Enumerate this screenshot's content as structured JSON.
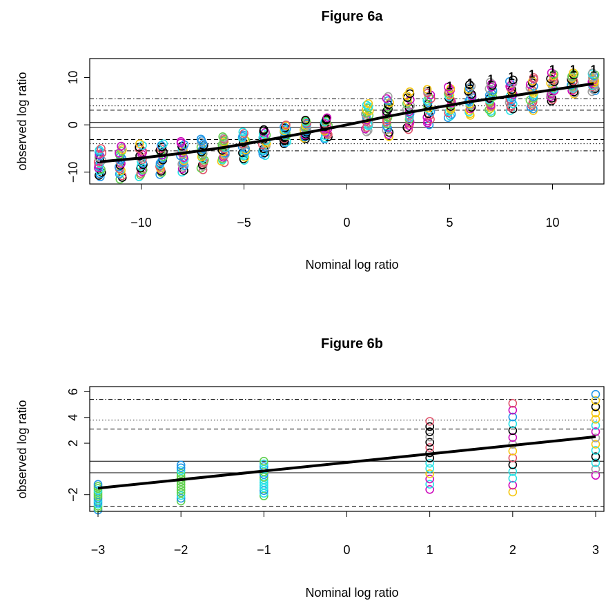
{
  "chart_data": [
    {
      "type": "scatter",
      "title": "Figure 6a",
      "xlabel": "Nominal log ratio",
      "ylabel": "observed log ratio",
      "xlim": [
        -12.5,
        12.5
      ],
      "ylim": [
        -12.5,
        14
      ],
      "xticks": [
        -10,
        -5,
        0,
        5,
        10
      ],
      "xtick_labels": [
        "−10",
        "−5",
        "0",
        "5",
        "10"
      ],
      "yticks": [
        -10,
        0,
        10
      ],
      "ytick_labels": [
        "−10",
        "0",
        "10"
      ],
      "grid": false,
      "colors": [
        "#000000",
        "#df536b",
        "#61d04f",
        "#2297e6",
        "#28e2e5",
        "#cd0bbc",
        "#f5c710",
        "#9e9e9e"
      ],
      "x_levels": [
        -12,
        -11,
        -10,
        -9,
        -8,
        -7,
        -6,
        -5,
        -4,
        -3,
        -2,
        -1,
        1,
        2,
        3,
        4,
        5,
        6,
        7,
        8,
        9,
        10,
        11,
        12
      ],
      "point_ranges": [
        {
          "x": -12,
          "ymin": -11,
          "ymax": -5
        },
        {
          "x": -11,
          "ymin": -11.5,
          "ymax": -4.5
        },
        {
          "x": -10,
          "ymin": -11,
          "ymax": -4
        },
        {
          "x": -9,
          "ymin": -10.5,
          "ymax": -4
        },
        {
          "x": -8,
          "ymin": -10,
          "ymax": -3.5
        },
        {
          "x": -7,
          "ymin": -9.5,
          "ymax": -3
        },
        {
          "x": -6,
          "ymin": -8,
          "ymax": -2.5
        },
        {
          "x": -5,
          "ymin": -7.5,
          "ymax": -1.5
        },
        {
          "x": -4,
          "ymin": -6.5,
          "ymax": -1
        },
        {
          "x": -3,
          "ymin": -4,
          "ymax": 0
        },
        {
          "x": -2,
          "ymin": -3,
          "ymax": 1
        },
        {
          "x": -1,
          "ymin": -3,
          "ymax": 1.5
        },
        {
          "x": 1,
          "ymin": -1.5,
          "ymax": 4.5
        },
        {
          "x": 2,
          "ymin": -2.5,
          "ymax": 6
        },
        {
          "x": 3,
          "ymin": -1,
          "ymax": 7
        },
        {
          "x": 4,
          "ymin": 0,
          "ymax": 7.5
        },
        {
          "x": 5,
          "ymin": 1.5,
          "ymax": 8
        },
        {
          "x": 6,
          "ymin": 2,
          "ymax": 8.5
        },
        {
          "x": 7,
          "ymin": 2.5,
          "ymax": 9
        },
        {
          "x": 8,
          "ymin": 3,
          "ymax": 9.5
        },
        {
          "x": 9,
          "ymin": 3,
          "ymax": 10
        },
        {
          "x": 10,
          "ymin": 5,
          "ymax": 11
        },
        {
          "x": 11,
          "ymin": 6.5,
          "ymax": 11
        },
        {
          "x": 12,
          "ymin": 7,
          "ymax": 11
        }
      ],
      "one_labels": [
        {
          "x": 4,
          "y": 6.5
        },
        {
          "x": 5,
          "y": 7.5
        },
        {
          "x": 6,
          "y": 8.2
        },
        {
          "x": 7,
          "y": 9
        },
        {
          "x": 8,
          "y": 9.5
        },
        {
          "x": 9,
          "y": 10
        },
        {
          "x": 10,
          "y": 11
        },
        {
          "x": 11,
          "y": 11
        },
        {
          "x": 12,
          "y": 11
        }
      ],
      "fit_line": {
        "x": [
          -12,
          -10,
          -8,
          -6,
          -4,
          -2,
          0,
          2,
          4,
          6,
          8,
          10,
          12
        ],
        "y": [
          -7.8,
          -7,
          -6,
          -4.8,
          -3.3,
          -1.7,
          0,
          1.8,
          3.4,
          4.9,
          6.1,
          7.4,
          8.7
        ]
      },
      "hlines": [
        {
          "y": 5.5,
          "style": "dashdot"
        },
        {
          "y": 4,
          "style": "dotted"
        },
        {
          "y": 3.1,
          "style": "dashed"
        },
        {
          "y": 0.5,
          "style": "solid"
        },
        {
          "y": -0.5,
          "style": "solid"
        },
        {
          "y": -3.1,
          "style": "dashed"
        },
        {
          "y": -4,
          "style": "dotted"
        },
        {
          "y": -5.5,
          "style": "dashdot"
        }
      ]
    },
    {
      "type": "scatter",
      "title": "Figure 6b",
      "xlabel": "Nominal log ratio",
      "ylabel": "observed log ratio",
      "xlim": [
        -3.1,
        3.1
      ],
      "ylim": [
        -3.3,
        6.4
      ],
      "xticks": [
        -3,
        -2,
        -1,
        0,
        1,
        2,
        3
      ],
      "xtick_labels": [
        "−3",
        "−2",
        "−1",
        "0",
        "1",
        "2",
        "3"
      ],
      "yticks": [
        -2,
        2,
        4,
        6
      ],
      "ytick_labels": [
        "−2",
        "2",
        "4",
        "6"
      ],
      "grid": false,
      "colors": [
        "#000000",
        "#df536b",
        "#61d04f",
        "#2297e6",
        "#28e2e5",
        "#cd0bbc",
        "#f5c710",
        "#9e9e9e"
      ],
      "point_ranges": [
        {
          "x": -3,
          "ymin": -3.2,
          "ymax": -1.2,
          "colors": [
            "#61d04f",
            "#2297e6",
            "#28e2e5"
          ]
        },
        {
          "x": -2,
          "ymin": -2.5,
          "ymax": 0.3,
          "colors": [
            "#61d04f",
            "#2297e6",
            "#28e2e5"
          ]
        },
        {
          "x": -1,
          "ymin": -2.1,
          "ymax": 0.6,
          "colors": [
            "#61d04f",
            "#2297e6",
            "#28e2e5"
          ]
        },
        {
          "x": 1,
          "ymin": -1.6,
          "ymax": 3.7,
          "colors": [
            "#000000",
            "#df536b",
            "#2297e6",
            "#28e2e5",
            "#cd0bbc",
            "#f5c710",
            "#9e9e9e"
          ]
        },
        {
          "x": 2,
          "ymin": -1.8,
          "ymax": 5.1,
          "colors": [
            "#000000",
            "#df536b",
            "#2297e6",
            "#28e2e5",
            "#cd0bbc",
            "#f5c710",
            "#9e9e9e"
          ]
        },
        {
          "x": 3,
          "ymin": -0.5,
          "ymax": 5.8,
          "colors": [
            "#000000",
            "#df536b",
            "#2297e6",
            "#28e2e5",
            "#cd0bbc",
            "#f5c710",
            "#9e9e9e"
          ]
        }
      ],
      "fit_line": {
        "x": [
          -3,
          3
        ],
        "y": [
          -1.5,
          2.5
        ]
      },
      "hlines": [
        {
          "y": 5.4,
          "style": "dashdot"
        },
        {
          "y": 3.8,
          "style": "dotted"
        },
        {
          "y": 3.1,
          "style": "dashed"
        },
        {
          "y": 0.6,
          "style": "solid"
        },
        {
          "y": -0.3,
          "style": "solid"
        },
        {
          "y": -2.9,
          "style": "dashed"
        }
      ]
    }
  ]
}
